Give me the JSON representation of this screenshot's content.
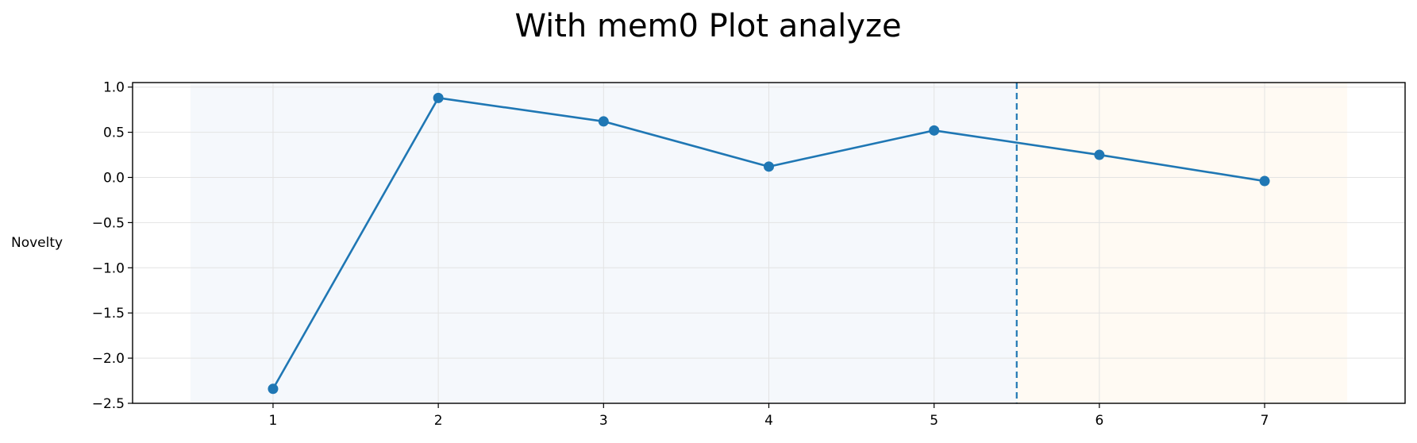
{
  "chart_data": {
    "type": "line",
    "title": "With mem0 Plot analyze",
    "xlabel": "",
    "ylabel": "Novelty",
    "x": [
      1,
      2,
      3,
      4,
      5,
      6,
      7
    ],
    "series": [
      {
        "values": [
          -2.34,
          0.88,
          0.62,
          0.12,
          0.52,
          0.25,
          -0.04
        ]
      }
    ],
    "xlim": [
      0.15,
      7.85
    ],
    "ylim": [
      -2.5,
      1.05
    ],
    "xticks": [
      1,
      2,
      3,
      4,
      5,
      6,
      7
    ],
    "yticks": [
      1.0,
      0.5,
      0.0,
      -0.5,
      -1.0,
      -1.5,
      -2.0,
      -2.5
    ],
    "ytick_labels": [
      "1.0",
      "0.5",
      "0.0",
      "−0.5",
      "−1.0",
      "−1.5",
      "−2.0",
      "−2.5"
    ],
    "shaded_regions": [
      {
        "x_start": 0.5,
        "x_end": 5.5,
        "color": "#f5f8fc"
      },
      {
        "x_start": 5.5,
        "x_end": 7.5,
        "color": "#fffaf3"
      }
    ],
    "vline": {
      "x": 5.5,
      "style": "dashed",
      "color": "#1f77b4"
    },
    "grid": true,
    "colors": {
      "line": "#1f77b4",
      "grid": "#e3e3e3",
      "axes": "#000000"
    }
  }
}
